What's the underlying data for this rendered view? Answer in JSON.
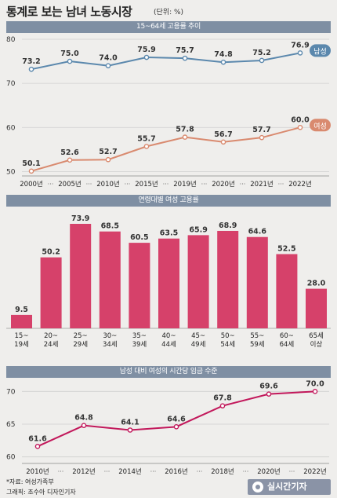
{
  "header": {
    "title": "통계로 보는 남녀 노동시장",
    "unit": "(단위: %)"
  },
  "chart_data": [
    {
      "type": "line",
      "title": "15~64세 고용률 추이",
      "categories": [
        "2000년",
        "2005년",
        "2010년",
        "2015년",
        "2019년",
        "2020년",
        "2021년",
        "2022년"
      ],
      "series": [
        {
          "name": "남성",
          "values": [
            73.2,
            75.0,
            74.0,
            75.9,
            75.7,
            74.8,
            75.2,
            76.9
          ],
          "color": "#5b88ad"
        },
        {
          "name": "여성",
          "values": [
            50.1,
            52.6,
            52.7,
            55.7,
            57.8,
            56.7,
            57.7,
            60.0
          ],
          "color": "#d98a6f"
        }
      ],
      "value_labels": {
        "남성": [
          "73.2",
          "75.0",
          "74.0",
          "75.9",
          "75.7",
          "74.8",
          "75.2",
          "76.9"
        ],
        "여성": [
          "50.1",
          "52.6",
          "52.7",
          "55.7",
          "57.8",
          "56.7",
          "57.7",
          "60.0"
        ]
      },
      "yticks": [
        "80",
        "70",
        "60",
        "50"
      ],
      "ylim": [
        49,
        80
      ],
      "legend": "inline-right"
    },
    {
      "type": "bar",
      "title": "연령대별 여성 고용률",
      "categories": [
        [
          "15~",
          "19세"
        ],
        [
          "20~",
          "24세"
        ],
        [
          "25~",
          "29세"
        ],
        [
          "30~",
          "34세"
        ],
        [
          "35~",
          "39세"
        ],
        [
          "40~",
          "44세"
        ],
        [
          "45~",
          "49세"
        ],
        [
          "50~",
          "54세"
        ],
        [
          "55~",
          "59세"
        ],
        [
          "60~",
          "64세"
        ],
        [
          "65세",
          "이상"
        ]
      ],
      "values": [
        9.5,
        50.2,
        73.9,
        68.5,
        60.5,
        63.5,
        65.9,
        68.9,
        64.6,
        52.5,
        28.0
      ],
      "value_labels": [
        "9.5",
        "50.2",
        "73.9",
        "68.5",
        "60.5",
        "63.5",
        "65.9",
        "68.9",
        "64.6",
        "52.5",
        "28.0"
      ],
      "color": "#d6416a",
      "ylim": [
        0,
        80
      ]
    },
    {
      "type": "line",
      "title": "남성 대비 여성의 시간당 임금 수준",
      "categories": [
        "2010년",
        "2012년",
        "2014년",
        "2016년",
        "2018년",
        "2020년",
        "2022년"
      ],
      "series": [
        {
          "values": [
            61.6,
            64.8,
            64.1,
            64.6,
            67.8,
            69.6,
            70.0
          ],
          "color": "#c2185b"
        }
      ],
      "value_labels": [
        "61.6",
        "64.8",
        "64.1",
        "64.6",
        "67.8",
        "69.6",
        "70.0"
      ],
      "yticks": [
        "70",
        "65",
        "60"
      ],
      "ylim": [
        59,
        71
      ]
    }
  ],
  "footer": {
    "source": "*자료: 여성가족부",
    "graphic": "그래픽: 조수아 디자인기자"
  },
  "logo": {
    "text": "실시간기자"
  }
}
